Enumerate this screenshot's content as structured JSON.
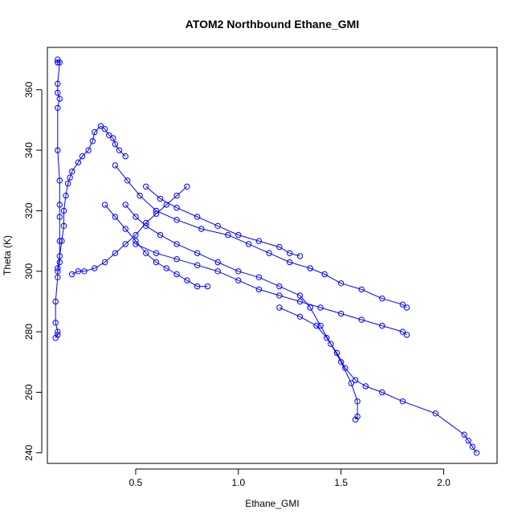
{
  "chart_data": {
    "type": "line",
    "title": "ATOM2 Northbound Ethane_GMI",
    "xlabel": "Ethane_GMI",
    "ylabel": "Theta (K)",
    "xlim": [
      0.07,
      2.26
    ],
    "ylim": [
      236.5,
      374
    ],
    "xticks": [
      0.5,
      1.0,
      1.5,
      2.0
    ],
    "xtick_labels": [
      "0.5",
      "1.0",
      "1.5",
      "2.0"
    ],
    "yticks": [
      240,
      260,
      280,
      300,
      320,
      340,
      360
    ],
    "ytick_labels": [
      "240",
      "260",
      "280",
      "300",
      "320",
      "340",
      "360"
    ],
    "grid": false,
    "legend": "none",
    "series_color": "#0000ff",
    "marker": "open-circle",
    "series": [
      {
        "x": [
          0.12,
          0.12,
          0.12,
          0.13,
          0.12,
          0.12,
          0.13,
          0.12,
          0.12,
          0.13,
          0.13,
          0.13,
          0.13,
          0.13,
          0.12,
          0.12,
          0.11,
          0.11,
          0.12,
          0.12,
          0.11
        ],
        "y": [
          370,
          369,
          369,
          369,
          362,
          359,
          357,
          354,
          340,
          330,
          322,
          318,
          310,
          303,
          300,
          298,
          290,
          283,
          280,
          279,
          278
        ]
      },
      {
        "x": [
          0.12,
          0.13,
          0.14,
          0.15,
          0.15,
          0.16,
          0.17,
          0.18,
          0.19,
          0.22,
          0.24,
          0.27,
          0.29,
          0.3,
          0.33,
          0.35,
          0.37,
          0.39,
          0.4,
          0.42,
          0.45
        ],
        "y": [
          301,
          305,
          310,
          315,
          320,
          325,
          329,
          331,
          333,
          336,
          338,
          340,
          343,
          346,
          348,
          347,
          345,
          344,
          342,
          340,
          338
        ]
      },
      {
        "x": [
          0.19,
          0.22,
          0.25,
          0.3,
          0.35,
          0.4,
          0.45,
          0.5,
          0.55,
          0.6,
          0.65,
          0.7,
          0.75
        ],
        "y": [
          299,
          300,
          300,
          301,
          303,
          306,
          309,
          312,
          316,
          319,
          322,
          325,
          328
        ]
      },
      {
        "x": [
          0.45,
          0.5,
          0.55,
          0.62,
          0.7,
          0.8,
          0.9,
          1.0,
          1.1,
          1.2,
          1.3,
          1.35,
          1.4,
          1.45,
          1.5,
          1.55,
          1.58,
          1.58,
          1.57
        ],
        "y": [
          322,
          318,
          315,
          312,
          309,
          306,
          303,
          300,
          298,
          295,
          292,
          288,
          282,
          276,
          270,
          263,
          257,
          252,
          251
        ]
      },
      {
        "x": [
          0.4,
          0.46,
          0.52,
          0.6,
          0.7,
          0.82,
          0.95,
          1.05,
          1.15,
          1.25,
          1.35,
          1.42,
          1.5,
          1.6,
          1.7,
          1.8,
          1.82
        ],
        "y": [
          335,
          330,
          325,
          320,
          317,
          314,
          312,
          309,
          306,
          303,
          301,
          299,
          296,
          294,
          291,
          289,
          288
        ]
      },
      {
        "x": [
          0.5,
          0.6,
          0.7,
          0.8,
          0.9,
          1.0,
          1.1,
          1.2,
          1.3,
          1.4,
          1.5,
          1.6,
          1.7,
          1.8,
          1.82
        ],
        "y": [
          309,
          306,
          304,
          302,
          300,
          297,
          294,
          292,
          290,
          288,
          286,
          284,
          282,
          280,
          279
        ]
      },
      {
        "x": [
          1.2,
          1.3,
          1.38,
          1.43,
          1.48,
          1.52,
          1.57,
          1.62,
          1.7,
          1.8,
          1.96,
          2.1,
          2.12,
          2.14,
          2.16
        ],
        "y": [
          288,
          285,
          282,
          278,
          273,
          268,
          264,
          262,
          260,
          257,
          253,
          246,
          244,
          242,
          240
        ]
      },
      {
        "x": [
          0.35,
          0.4,
          0.45,
          0.5,
          0.55,
          0.6,
          0.65,
          0.7,
          0.75,
          0.8,
          0.85
        ],
        "y": [
          322,
          318,
          314,
          310,
          306,
          303,
          301,
          299,
          297,
          295,
          295
        ]
      },
      {
        "x": [
          0.55,
          0.62,
          0.7,
          0.8,
          0.9,
          1.0,
          1.1,
          1.2,
          1.25,
          1.3
        ],
        "y": [
          328,
          324,
          321,
          318,
          315,
          312,
          310,
          308,
          306,
          305
        ]
      }
    ]
  }
}
